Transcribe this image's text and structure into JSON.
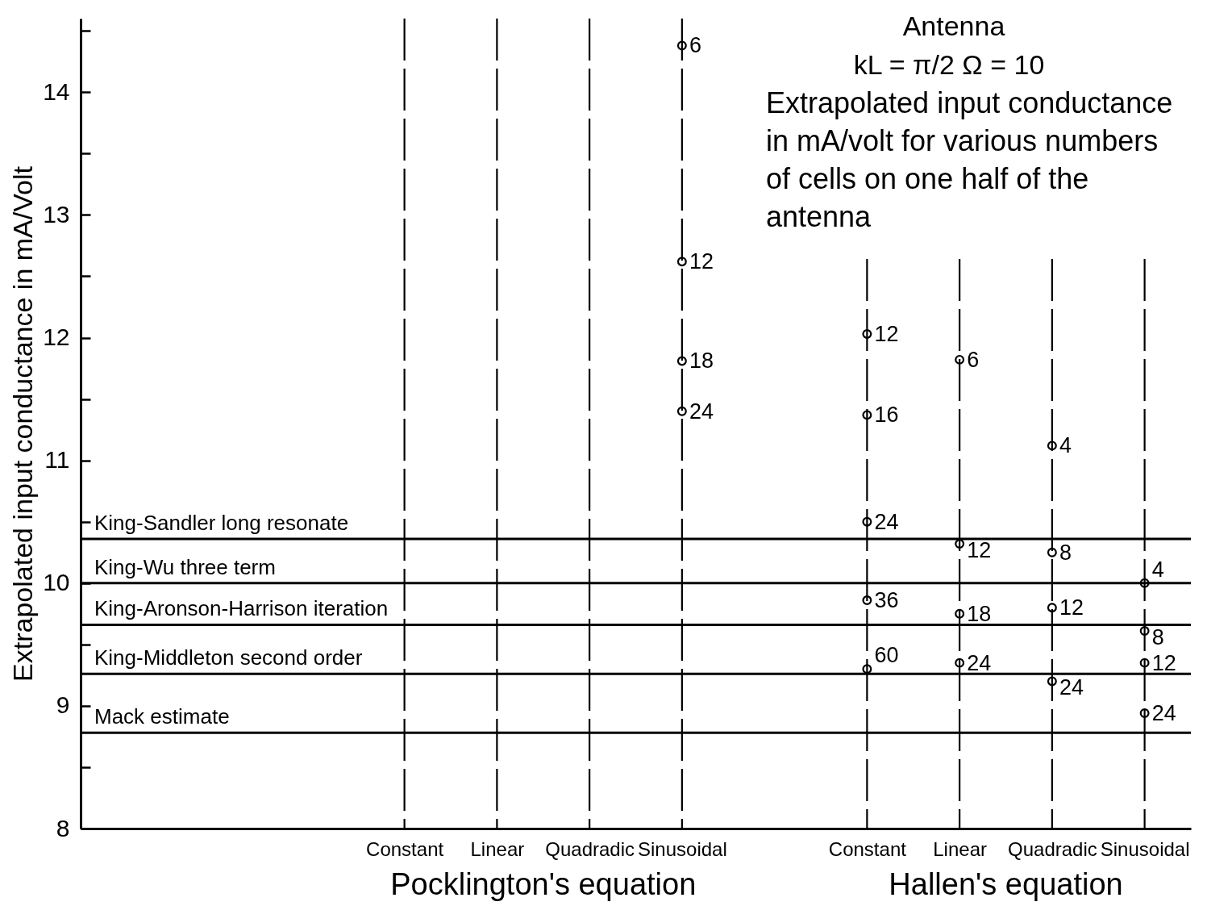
{
  "chart_data": {
    "type": "scatter",
    "title": "Antenna",
    "subtitle": "kL = π/2      Ω = 10",
    "ylabel": "Extrapolated input conductance in mA/Volt",
    "annotations": [
      "Extrapolated input conductance in mA/volt for various numbers of cells on one half of the antenna",
      "Pocklington's equation",
      "Hallen's equation"
    ],
    "categories": [
      null,
      null,
      null,
      "Constant",
      "Linear",
      "Quadradic",
      "Sinusoidal",
      null,
      "Constant",
      "Linear",
      "Quadradic",
      "Sinusoidal"
    ],
    "ylim": [
      8,
      14.6
    ],
    "yticks": [
      8,
      {
        "value": 8.5,
        "label": null
      },
      9,
      {
        "value": 9.5,
        "label": null
      },
      10,
      {
        "value": 10.5,
        "label": null
      },
      11,
      {
        "value": 11.5,
        "label": null
      },
      12,
      {
        "value": 12.5,
        "label": null
      },
      13,
      {
        "value": 13.5,
        "label": null
      },
      14,
      {
        "value": 14.5,
        "label": null
      }
    ],
    "grid": "x",
    "marker": "circle",
    "series": [
      {
        "name": "4",
        "color": "#000000",
        "values": [
          null,
          null,
          null,
          null,
          null,
          null,
          null,
          null,
          null,
          null,
          11.12,
          10.0
        ]
      },
      {
        "name": "6",
        "color": "#000000",
        "values": [
          null,
          null,
          null,
          null,
          null,
          null,
          14.38,
          null,
          null,
          11.82,
          null,
          null
        ]
      },
      {
        "name": "8",
        "color": "#000000",
        "values": [
          null,
          null,
          null,
          null,
          null,
          null,
          null,
          null,
          null,
          null,
          10.25,
          9.61
        ]
      },
      {
        "name": "12",
        "color": "#000000",
        "values": [
          null,
          null,
          null,
          null,
          null,
          null,
          12.62,
          null,
          12.03,
          10.32,
          9.8,
          9.35
        ]
      },
      {
        "name": "16",
        "color": "#000000",
        "values": [
          null,
          null,
          null,
          null,
          null,
          null,
          null,
          null,
          11.37,
          null,
          null,
          null
        ]
      },
      {
        "name": "18",
        "color": "#000000",
        "values": [
          null,
          null,
          null,
          null,
          null,
          null,
          11.81,
          null,
          null,
          9.75,
          null,
          null
        ]
      },
      {
        "name": "24",
        "color": "#000000",
        "values": [
          null,
          null,
          null,
          null,
          null,
          null,
          11.4,
          null,
          10.5,
          9.35,
          9.2,
          8.94
        ]
      },
      {
        "name": "36",
        "color": "#000000",
        "values": [
          null,
          null,
          null,
          null,
          null,
          null,
          null,
          null,
          9.86,
          null,
          null,
          null
        ]
      },
      {
        "name": "60",
        "color": "#000000",
        "values": [
          null,
          null,
          null,
          null,
          null,
          null,
          null,
          null,
          9.3,
          null,
          null,
          null
        ]
      }
    ],
    "ref_lines": [
      {
        "axis": "y",
        "value": 10.36,
        "label": "King-Sandler long resonate"
      },
      {
        "axis": "y",
        "value": 10.0,
        "label": "King-Wu three term"
      },
      {
        "axis": "y",
        "value": 9.66,
        "label": "King-Aronson-Harrison iteration"
      },
      {
        "axis": "y",
        "value": 9.26,
        "label": "King-Middleton second order"
      },
      {
        "axis": "y",
        "value": 8.78,
        "label": "Mack estimate"
      }
    ]
  }
}
